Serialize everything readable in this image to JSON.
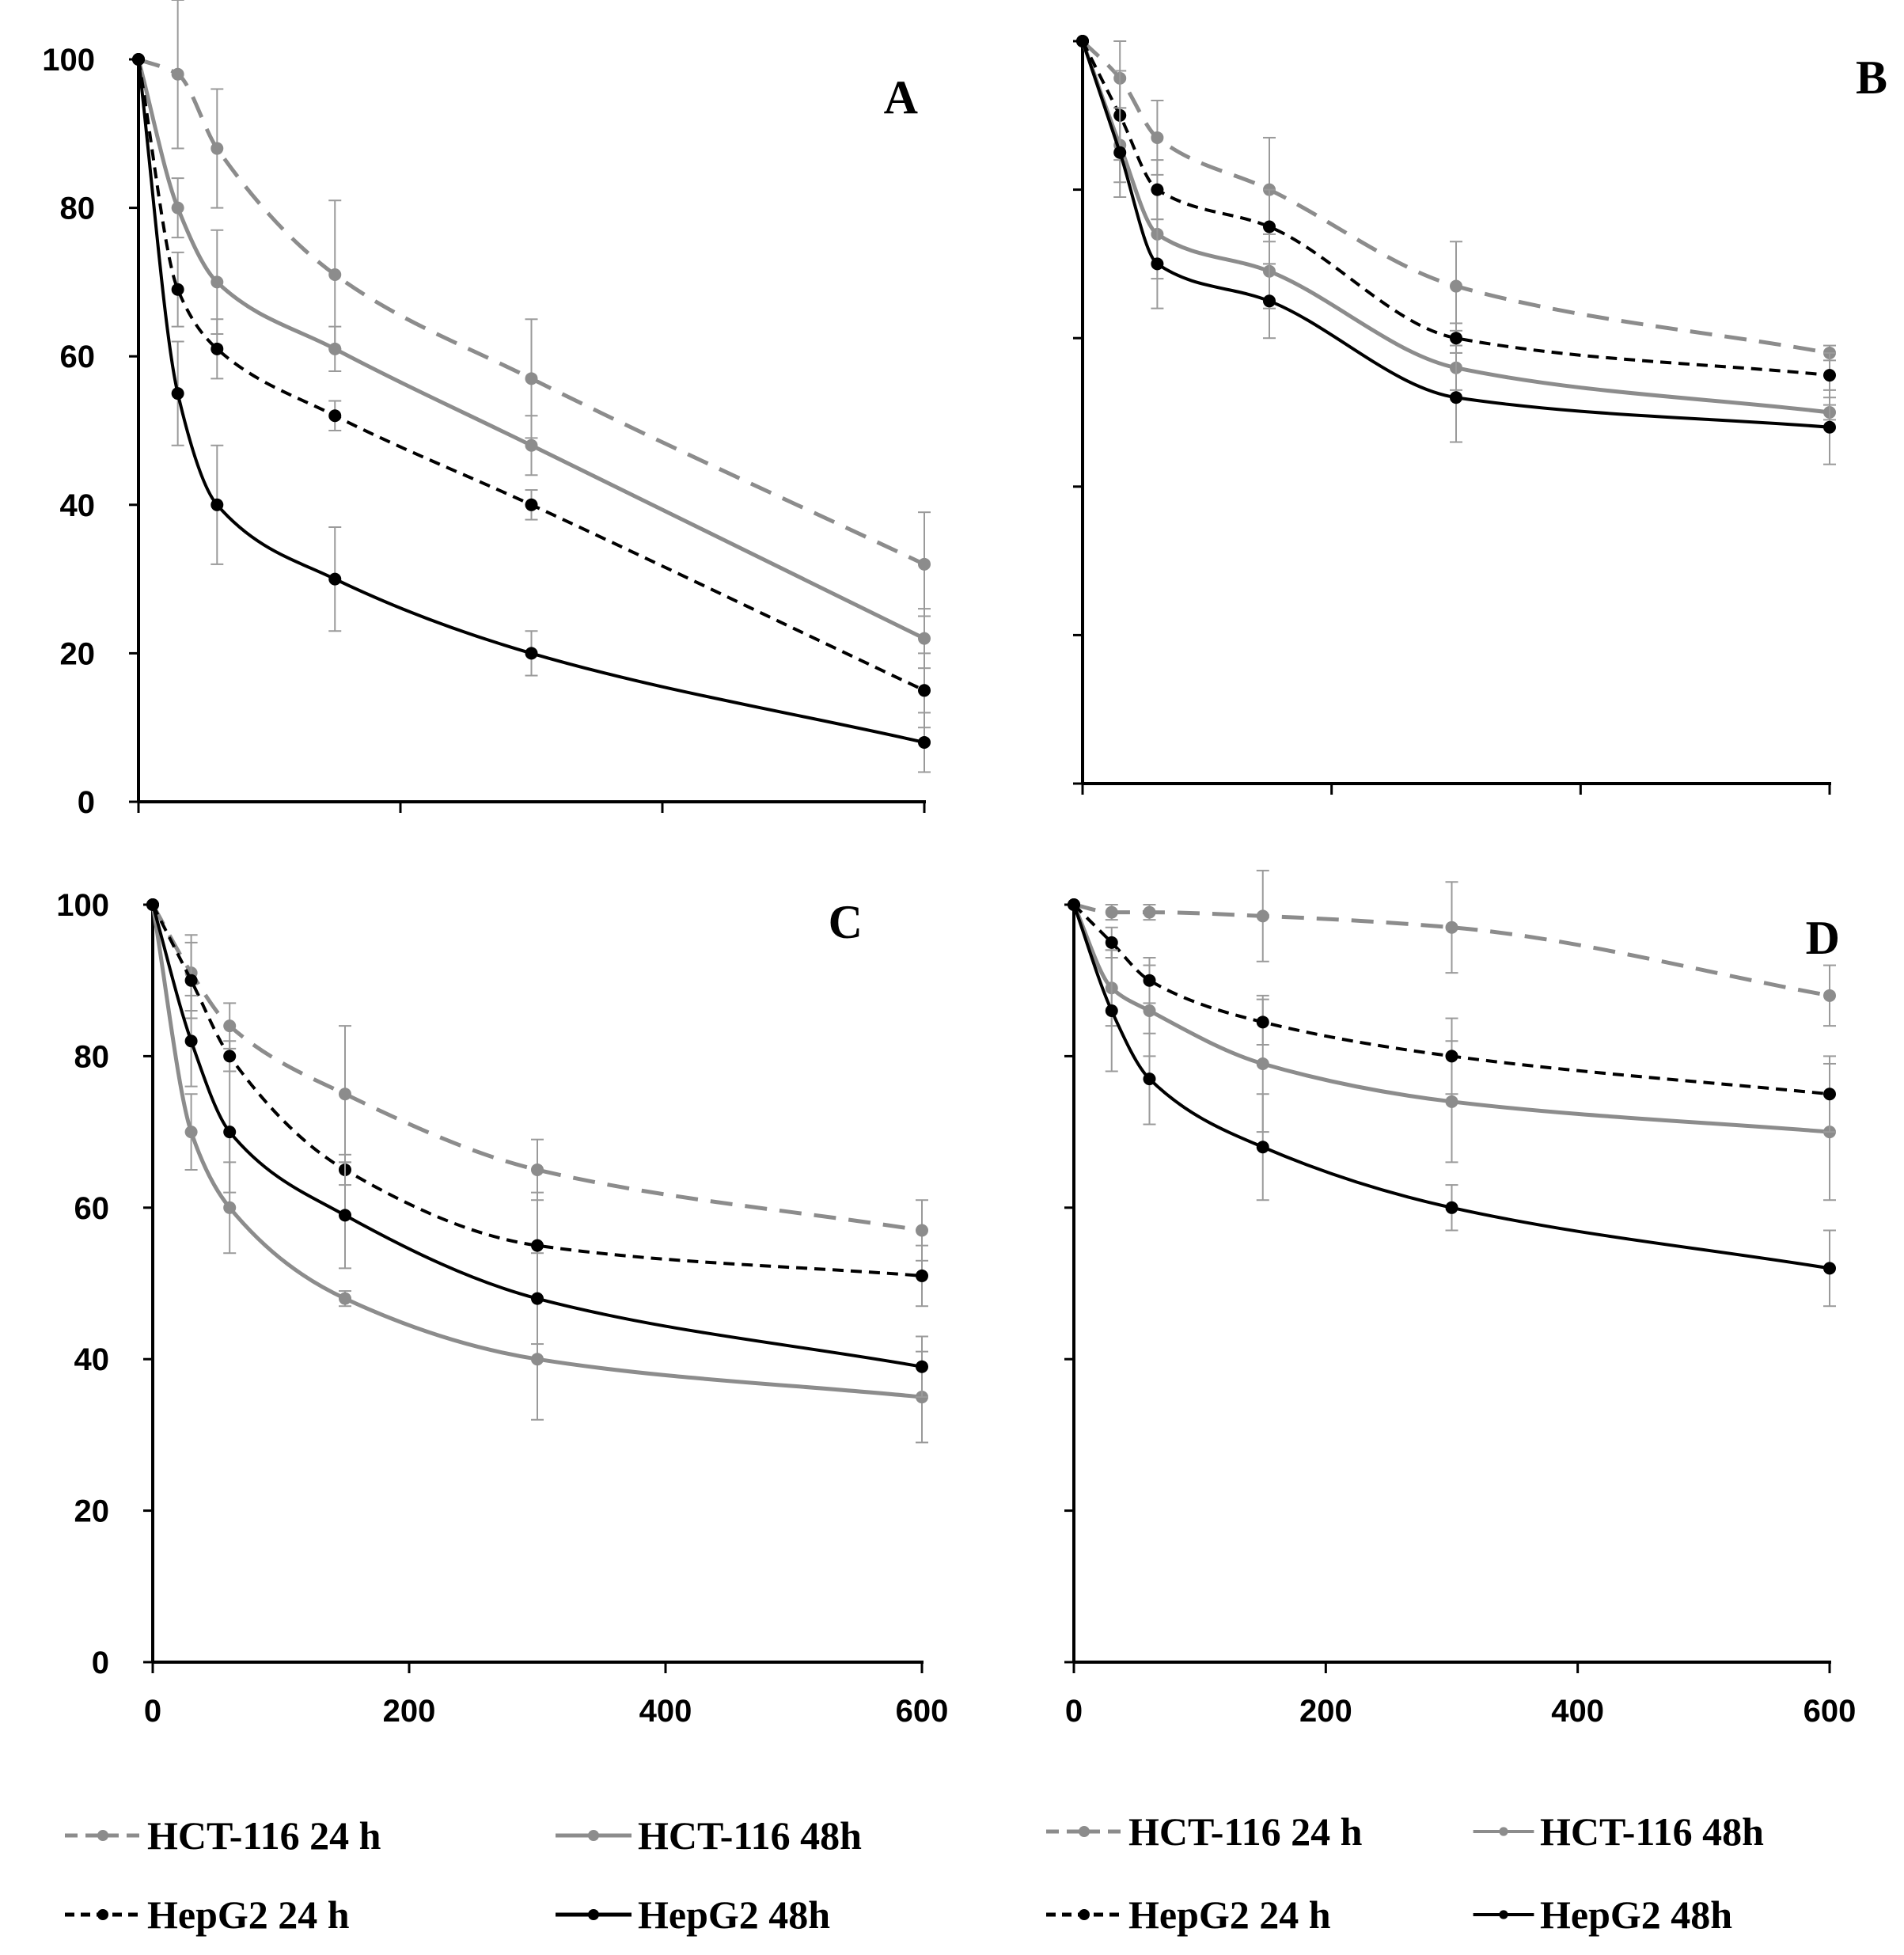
{
  "chart_data": [
    {
      "panel": "A",
      "type": "line",
      "xlim": [
        0,
        600
      ],
      "ylim": [
        0,
        100
      ],
      "xticks": [
        0,
        200,
        400,
        600
      ],
      "yticks": [
        0,
        20,
        40,
        60,
        80,
        100
      ],
      "x_tick_labels_visible": false,
      "y_tick_labels_visible": true,
      "x": [
        0,
        30,
        60,
        150,
        300,
        600
      ],
      "series": [
        {
          "name": "HCT-116 24 h",
          "color": "#8c8c8c",
          "dashed": true,
          "values": [
            100,
            98,
            88,
            71,
            57,
            32
          ],
          "errors": [
            0,
            10,
            8,
            10,
            8,
            7
          ]
        },
        {
          "name": "HCT-116 48h",
          "color": "#8c8c8c",
          "dashed": false,
          "values": [
            100,
            80,
            70,
            61,
            48,
            22
          ],
          "errors": [
            0,
            4,
            7,
            3,
            4,
            4
          ]
        },
        {
          "name": "HepG2 24 h",
          "color": "#000000",
          "dashed": true,
          "values": [
            100,
            69,
            61,
            52,
            40,
            15
          ],
          "errors": [
            0,
            5,
            4,
            2,
            2,
            5
          ]
        },
        {
          "name": "HepG2 48h",
          "color": "#000000",
          "dashed": false,
          "values": [
            100,
            55,
            40,
            30,
            20,
            8
          ],
          "errors": [
            0,
            7,
            8,
            7,
            3,
            4
          ]
        }
      ]
    },
    {
      "panel": "B",
      "type": "line",
      "xlim": [
        0,
        600
      ],
      "ylim": [
        0,
        100
      ],
      "xticks": [
        0,
        200,
        400,
        600
      ],
      "yticks": [
        0,
        20,
        40,
        60,
        80,
        100
      ],
      "x_tick_labels_visible": false,
      "y_tick_labels_visible": false,
      "x": [
        0,
        30,
        60,
        150,
        300,
        600
      ],
      "series": [
        {
          "name": "HCT-116 24 h",
          "color": "#8c8c8c",
          "dashed": true,
          "values": [
            100,
            95,
            87,
            80,
            67,
            58
          ],
          "errors": [
            0,
            5,
            5,
            7,
            6,
            1
          ]
        },
        {
          "name": "HCT-116 48h",
          "color": "#8c8c8c",
          "dashed": false,
          "values": [
            100,
            86,
            74,
            69,
            56,
            50
          ],
          "errors": [
            0,
            5,
            6,
            5,
            3,
            1
          ]
        },
        {
          "name": "HepG2 24 h",
          "color": "#000000",
          "dashed": true,
          "values": [
            100,
            90,
            80,
            75,
            60,
            55
          ],
          "errors": [
            0,
            6,
            4,
            5,
            2,
            3
          ]
        },
        {
          "name": "HepG2 48h",
          "color": "#000000",
          "dashed": false,
          "values": [
            100,
            85,
            70,
            65,
            52,
            48
          ],
          "errors": [
            0,
            6,
            6,
            5,
            6,
            5
          ]
        }
      ]
    },
    {
      "panel": "C",
      "type": "line",
      "xlim": [
        0,
        600
      ],
      "ylim": [
        0,
        100
      ],
      "xticks": [
        0,
        200,
        400,
        600
      ],
      "yticks": [
        0,
        20,
        40,
        60,
        80,
        100
      ],
      "x_tick_labels_visible": true,
      "y_tick_labels_visible": true,
      "x": [
        0,
        30,
        60,
        150,
        300,
        600
      ],
      "series": [
        {
          "name": "HCT-116 24 h",
          "color": "#8c8c8c",
          "dashed": true,
          "values": [
            100,
            91,
            84,
            75,
            65,
            57
          ],
          "errors": [
            0,
            5,
            3,
            9,
            4,
            4
          ]
        },
        {
          "name": "HCT-116 48h",
          "color": "#8c8c8c",
          "dashed": false,
          "values": [
            100,
            70,
            60,
            48,
            40,
            35
          ],
          "errors": [
            0,
            5,
            6,
            1,
            8,
            6
          ]
        },
        {
          "name": "HepG2 24 h",
          "color": "#000000",
          "dashed": true,
          "values": [
            100,
            90,
            80,
            65,
            55,
            51
          ],
          "errors": [
            0,
            5,
            2,
            2,
            7,
            4
          ]
        },
        {
          "name": "HepG2 48h",
          "color": "#000000",
          "dashed": false,
          "values": [
            100,
            82,
            70,
            59,
            48,
            39
          ],
          "errors": [
            0,
            6,
            8,
            7,
            6,
            4
          ]
        }
      ]
    },
    {
      "panel": "D",
      "type": "line",
      "xlim": [
        0,
        600
      ],
      "ylim": [
        0,
        100
      ],
      "xticks": [
        0,
        200,
        400,
        600
      ],
      "yticks": [
        0,
        20,
        40,
        60,
        80,
        100
      ],
      "x_tick_labels_visible": true,
      "y_tick_labels_visible": false,
      "x": [
        0,
        30,
        60,
        150,
        300,
        600
      ],
      "series": [
        {
          "name": "HCT-116 24 h",
          "color": "#8c8c8c",
          "dashed": true,
          "values": [
            100,
            99,
            99,
            98.5,
            97,
            88
          ],
          "errors": [
            0,
            1,
            1,
            6,
            6,
            4
          ]
        },
        {
          "name": "HCT-116 48h",
          "color": "#8c8c8c",
          "dashed": false,
          "values": [
            100,
            89,
            86,
            79,
            74,
            70
          ],
          "errors": [
            0,
            5,
            6,
            9,
            8,
            9
          ]
        },
        {
          "name": "HepG2 24 h",
          "color": "#000000",
          "dashed": true,
          "values": [
            100,
            95,
            90,
            84.5,
            80,
            75
          ],
          "errors": [
            0,
            2,
            3,
            3,
            5,
            5
          ]
        },
        {
          "name": "HepG2 48h",
          "color": "#000000",
          "dashed": false,
          "values": [
            100,
            86,
            77,
            68,
            60,
            52
          ],
          "errors": [
            0,
            8,
            6,
            7,
            3,
            5
          ]
        }
      ]
    }
  ],
  "legends": {
    "left": {
      "hct_24": "HCT-116 24 h",
      "hct_48": "HCT-116 48h",
      "hep_24": "HepG2 24 h",
      "hep_48": "HepG2 48h"
    },
    "right": {
      "hct_24": "HCT-116 24 h",
      "hct_48": "HCT-116 48h",
      "hep_24": "HepG2 24 h",
      "hep_48": "HepG2 48h"
    }
  }
}
